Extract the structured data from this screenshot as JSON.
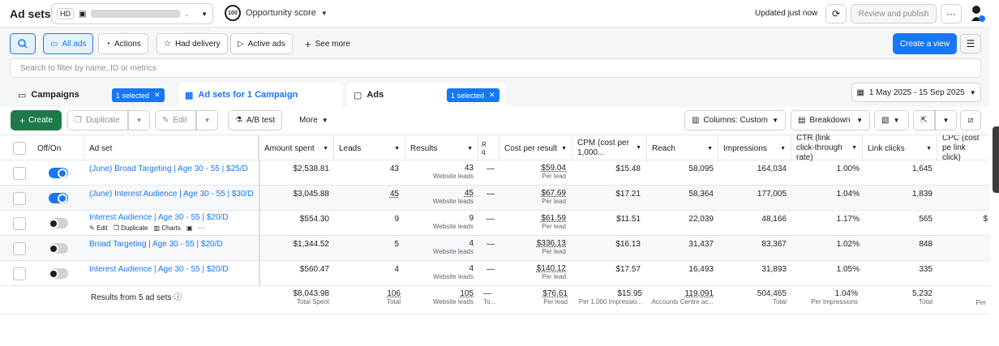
{
  "header": {
    "title": "Ad sets",
    "account_badge": "HD",
    "opportunity_score": "100",
    "opportunity_label": "Opportunity score",
    "updated": "Updated just now",
    "review_publish": "Review and publish",
    "more": "···"
  },
  "filters": {
    "all_ads": "All ads",
    "actions": "Actions",
    "had_delivery": "Had delivery",
    "active_ads": "Active ads",
    "see_more": "See more",
    "create_view": "Create a view",
    "search_placeholder": "Search to filter by name, ID or metrics"
  },
  "tabs": {
    "campaigns": "Campaigns",
    "campaigns_selected": "1 selected",
    "adsets": "Ad sets for 1 Campaign",
    "ads": "Ads",
    "ads_selected": "1 selected",
    "date_range": "1 May 2025 - 15 Sep 2025"
  },
  "toolbar": {
    "create": "Create",
    "duplicate": "Duplicate",
    "edit": "Edit",
    "ab_test": "A/B test",
    "more": "More",
    "columns": "Columns: Custom",
    "breakdown": "Breakdown"
  },
  "columns": {
    "offon": "Off/On",
    "adset": "Ad set",
    "amount": "Amount spent",
    "leads": "Leads",
    "results": "Results",
    "rq": "R\nq",
    "cpr": "Cost per result",
    "cpm": "CPM (cost per 1,000...",
    "reach": "Reach",
    "impressions": "Impressions",
    "ctr": "CTR (link click-through rate)",
    "link_clicks": "Link clicks",
    "cpc": "CPC (cost pe link click)"
  },
  "rows": [
    {
      "name": "(June) Broad Targeting | Age 30 - 55 | $25/D",
      "on": true,
      "amount": "$2,538.81",
      "leads": "43",
      "results": "43",
      "results_sub": "Website leads",
      "dash": "—",
      "cpr": "$59.04",
      "cpr_sub": "Per lead",
      "cpm": "$15.48",
      "reach": "58,095",
      "impressions": "164,034",
      "ctr": "1.00%",
      "clicks": "1,645",
      "cpc": "",
      "leads_link": false,
      "results_link": false
    },
    {
      "name": "(June) Interest Audience | Age 30 - 55 | $30/D",
      "on": true,
      "amount": "$3,045.88",
      "leads": "45",
      "results": "45",
      "results_sub": "Website leads",
      "dash": "—",
      "cpr": "$67.69",
      "cpr_sub": "Per lead",
      "cpm": "$17.21",
      "reach": "58,364",
      "impressions": "177,005",
      "ctr": "1.04%",
      "clicks": "1,839",
      "cpc": "",
      "leads_link": true,
      "results_link": true
    },
    {
      "name": "Interest Audience | Age 30 - 55 | $20/D",
      "on": false,
      "amount": "$554.30",
      "leads": "9",
      "results": "9",
      "results_sub": "Website leads",
      "dash": "—",
      "cpr": "$61.59",
      "cpr_sub": "Per lead",
      "cpm": "$11.51",
      "reach": "22,039",
      "impressions": "48,166",
      "ctr": "1.17%",
      "clicks": "565",
      "cpc": "$",
      "leads_link": false,
      "results_link": false
    },
    {
      "name": "Broad Targeting | Age 30 - 55 | $20/D",
      "on": false,
      "amount": "$1,344.52",
      "leads": "5",
      "results": "4",
      "results_sub": "Website leads",
      "dash": "—",
      "cpr": "$336.13",
      "cpr_sub": "Per lead",
      "cpm": "$16.13",
      "reach": "31,437",
      "impressions": "83,367",
      "ctr": "1.02%",
      "clicks": "848",
      "cpc": "",
      "leads_link": false,
      "results_link": false
    },
    {
      "name": "Interest Audience | Age 30 - 55 | $20/D",
      "on": false,
      "amount": "$560.47",
      "leads": "4",
      "results": "4",
      "results_sub": "Website leads",
      "dash": "—",
      "cpr": "$140.12",
      "cpr_sub": "Per lead",
      "cpm": "$17.57",
      "reach": "16,493",
      "impressions": "31,893",
      "ctr": "1.05%",
      "clicks": "335",
      "cpc": "",
      "leads_link": false,
      "results_link": false
    }
  ],
  "row_actions": {
    "edit": "Edit",
    "duplicate": "Duplicate",
    "charts": "Charts",
    "more": "···"
  },
  "totals": {
    "label": "Results from 5 ad sets",
    "amount": "$8,043.98",
    "amount_sub": "Total Spent",
    "leads": "106",
    "leads_sub": "Total",
    "results": "105",
    "results_sub": "Website leads",
    "dash": "—",
    "dash_sub": "To...",
    "cpr": "$76.61",
    "cpr_sub": "Per lead",
    "cpm": "$15.95",
    "cpm_sub": "Per 1,000 Impressio...",
    "reach": "119,091",
    "reach_sub": "Accounts Centre ac...",
    "impressions": "504,465",
    "impressions_sub": "Total",
    "ctr": "1.04%",
    "ctr_sub": "Per Impressions",
    "clicks": "5,232",
    "clicks_sub": "Total",
    "cpc_sub": "Per"
  }
}
